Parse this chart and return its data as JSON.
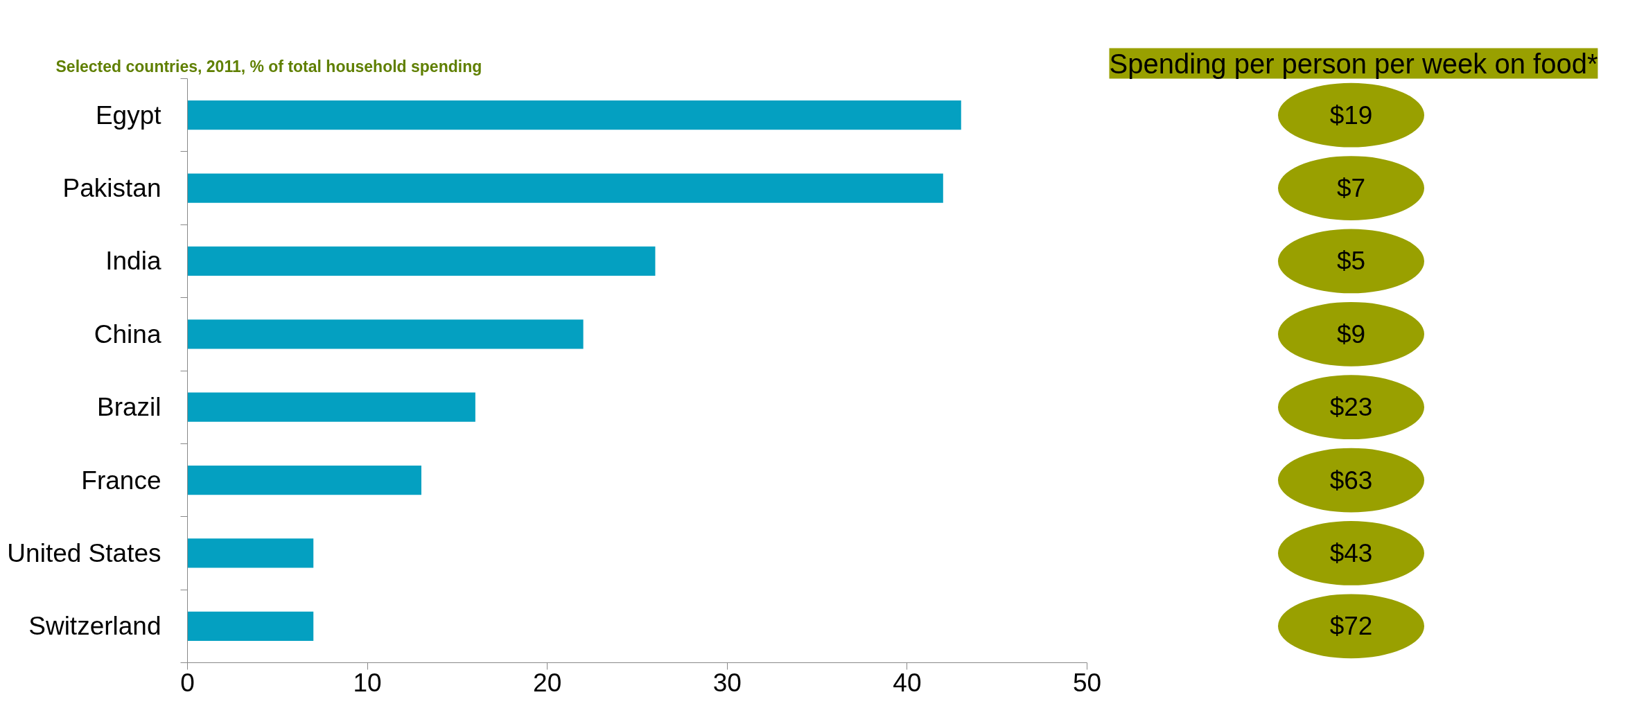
{
  "chart_data": {
    "type": "bar",
    "orientation": "horizontal",
    "title": "Selected countries, 2011, % of total household spending",
    "categories": [
      "Egypt",
      "Pakistan",
      "India",
      "China",
      "Brazil",
      "France",
      "United States",
      "Switzerland"
    ],
    "values": [
      43,
      42,
      26,
      22,
      16,
      13,
      7,
      7
    ],
    "color": "#04a0c1",
    "xlim": [
      0,
      50
    ],
    "xticks": [
      0,
      10,
      20,
      30,
      40,
      50
    ],
    "grid": false,
    "annotations": [
      "Spending per person per week on food*",
      "$19",
      "$7",
      "$5",
      "$9",
      "$23",
      "$63",
      "$43",
      "$72"
    ]
  }
}
